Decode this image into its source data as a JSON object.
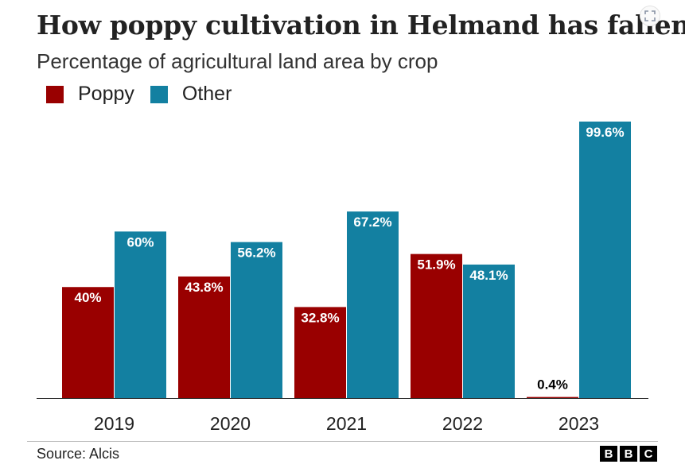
{
  "title": "How poppy cultivation in Helmand has fallen",
  "subtitle": "Percentage of agricultural land area by crop",
  "legend": [
    {
      "label": "Poppy",
      "color": "#990000"
    },
    {
      "label": "Other",
      "color": "#1380A1"
    }
  ],
  "source": "Source: Alcis",
  "logo": [
    "B",
    "B",
    "C"
  ],
  "icons": {
    "expand": "expand-icon"
  },
  "chart_data": {
    "type": "bar",
    "title": "How poppy cultivation in Helmand has fallen",
    "subtitle": "Percentage of agricultural land area by crop",
    "categories": [
      "2019",
      "2020",
      "2021",
      "2022",
      "2023"
    ],
    "series": [
      {
        "name": "Poppy",
        "color": "#990000",
        "values": [
          40,
          43.8,
          32.8,
          51.9,
          0.4
        ],
        "labels": [
          "40%",
          "43.8%",
          "32.8%",
          "51.9%",
          "0.4%"
        ]
      },
      {
        "name": "Other",
        "color": "#1380A1",
        "values": [
          60,
          56.2,
          67.2,
          48.1,
          99.6
        ],
        "labels": [
          "60%",
          "56.2%",
          "67.2%",
          "48.1%",
          "99.6%"
        ]
      }
    ],
    "ylim": [
      0,
      100
    ],
    "grid": false,
    "legend_position": "top-left"
  }
}
